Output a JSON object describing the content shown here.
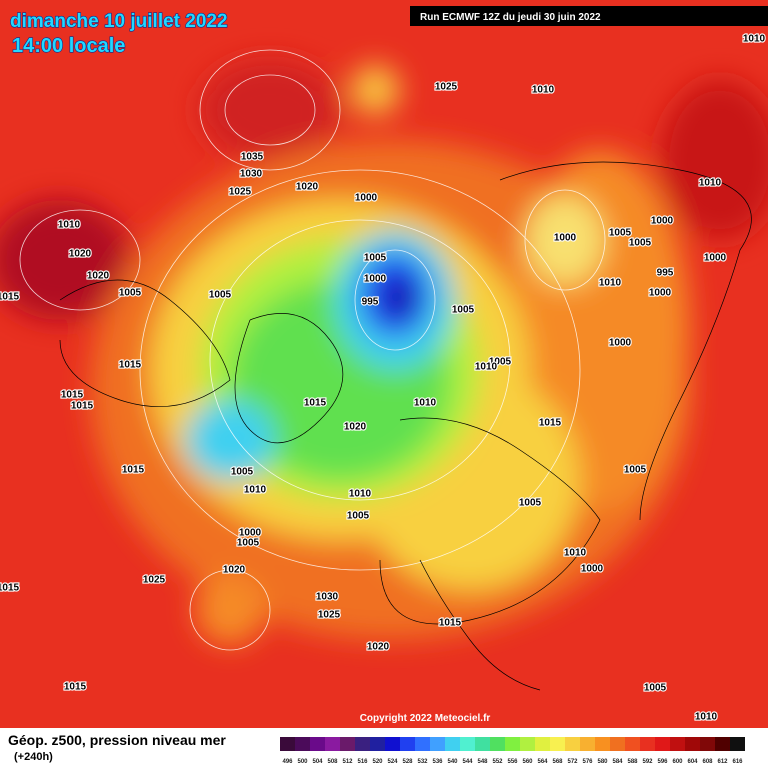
{
  "header": {
    "date": "dimanche 10 juillet 2022",
    "time": "14:00 locale",
    "run": "Run ECMWF 12Z du jeudi 30 juin 2022"
  },
  "footer": {
    "title": "Géop. z500, pression niveau mer",
    "lead": "(+240h)",
    "copyright": "Copyright 2022 Meteociel.fr"
  },
  "isobar_labels": [
    1025,
    1010,
    1010,
    1035,
    1030,
    1025,
    1020,
    1000,
    1010,
    1020,
    1020,
    1005,
    1005,
    1015,
    1005,
    1000,
    995,
    1005,
    1000,
    1005,
    1005,
    1000,
    1010,
    1000,
    995,
    1010,
    1000,
    1015,
    1005,
    1010,
    1000,
    1015,
    1015,
    1015,
    1010,
    1020,
    1015,
    1015,
    1005,
    1010,
    1010,
    1005,
    1005,
    1005,
    1000,
    1005,
    1010,
    1000,
    1020,
    1025,
    1015,
    1030,
    1025,
    1015,
    1020,
    1015,
    1005,
    1010
  ],
  "legend": {
    "values": [
      496,
      500,
      504,
      508,
      512,
      516,
      520,
      524,
      528,
      532,
      536,
      540,
      544,
      548,
      552,
      556,
      560,
      564,
      568,
      572,
      576,
      580,
      584,
      588,
      592,
      596,
      600,
      604,
      608,
      612,
      616
    ]
  }
}
